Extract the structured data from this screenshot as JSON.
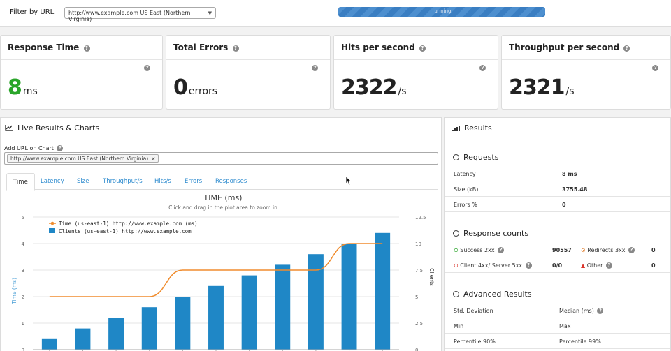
{
  "filter": {
    "label": "Filter by URL",
    "selected": "http://www.example.com US East (Northern Virginia)"
  },
  "progress": {
    "label": "running",
    "value_pct": 100
  },
  "cards": [
    {
      "title": "Response Time",
      "value": "8",
      "unit": "ms"
    },
    {
      "title": "Total Errors",
      "value": "0",
      "unit": "errors"
    },
    {
      "title": "Hits per second",
      "value": "2322",
      "unit": "/s"
    },
    {
      "title": "Throughput per second",
      "value": "2321",
      "unit": "/s"
    }
  ],
  "live": {
    "title": "Live Results & Charts",
    "add_url_label": "Add URL on Chart",
    "tag": "http://www.example.com US East (Northern Virginia)",
    "tag_remove": "×",
    "tabs": [
      "Time",
      "Latency",
      "Size",
      "Throughput/s",
      "Hits/s",
      "Errors",
      "Responses"
    ],
    "active_tab": 0
  },
  "chart_data": {
    "type": "bar",
    "title": "TIME (ms)",
    "subtitle": "Click and drag in the plot area to zoom in",
    "ylabel": "Time (ms)",
    "ylabel_right": "Clients",
    "ylim": [
      0,
      5
    ],
    "ylim_right": [
      0,
      12.5
    ],
    "y_ticks": [
      0,
      1,
      2,
      3,
      4,
      5
    ],
    "y_ticks_right": [
      "0",
      "2.5",
      "5",
      "7.5",
      "10",
      "12.5"
    ],
    "legend_position": "top-left",
    "series": [
      {
        "name": "Time (us-east-1) http://www.example.com (ms)",
        "type": "line",
        "axis": "left",
        "color": "#f08c2e",
        "values": [
          2,
          2,
          2,
          2,
          3,
          3,
          3,
          3,
          3,
          4,
          4
        ]
      },
      {
        "name": "Clients (us-east-1) http://www.example.com",
        "type": "bar",
        "axis": "right",
        "color": "#1f87c6",
        "values": [
          1,
          2,
          3,
          4,
          5,
          6,
          7,
          8,
          9,
          10,
          11
        ]
      }
    ]
  },
  "results": {
    "title": "Results",
    "requests": {
      "title": "Requests",
      "rows": [
        {
          "label": "Latency",
          "value": "8 ms"
        },
        {
          "label": "Size (kB)",
          "value": "3755.48"
        },
        {
          "label": "Errors %",
          "value": "0"
        }
      ]
    },
    "response_counts": {
      "title": "Response counts",
      "rows": [
        {
          "label": "Success 2xx",
          "value": "90557",
          "label2": "Redirects 3xx",
          "value2": "0"
        },
        {
          "label": "Client 4xx/ Server 5xx",
          "value": "0/0",
          "label2": "Other",
          "value2": "0"
        }
      ]
    },
    "advanced": {
      "title": "Advanced Results",
      "rows": [
        {
          "label": "Std. Deviation",
          "label2": "Median (ms)"
        },
        {
          "label": "Min",
          "label2": "Max"
        },
        {
          "label": "Percentile 90%",
          "label2": "Percentile 99%"
        }
      ]
    }
  }
}
